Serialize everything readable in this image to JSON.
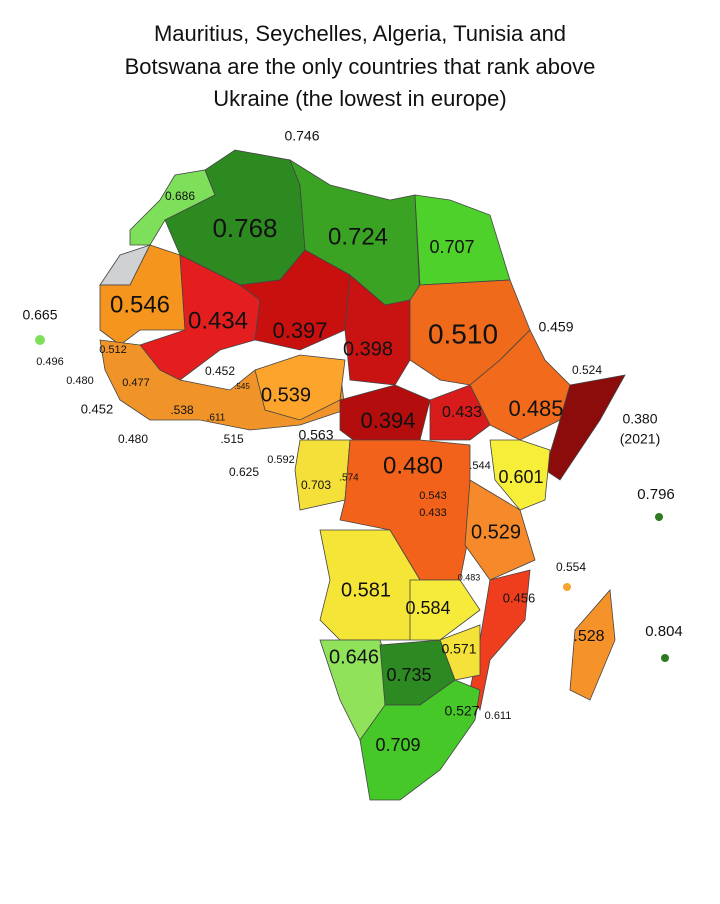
{
  "title": [
    "Mauritius, Seychelles, Algeria, Tunisia and",
    "Botswana are the only countries that rank above",
    "Ukraine (the lowest in europe)"
  ],
  "labels": [
    "0.746",
    "0.686",
    "0.768",
    "0.724",
    "0.707",
    "0.546",
    "0.434",
    "0.397",
    "0.398",
    "0.510",
    "0.459",
    "0.665",
    "0.512",
    "0.496",
    "0.480",
    "0.477",
    "0.452",
    ".545",
    "0.539",
    "0.524",
    "0.485",
    "0.380",
    "(2021)",
    "0.452",
    ".538",
    ".611",
    "0.394",
    "0.433",
    "0.480",
    ".515",
    "0.563",
    "0.592",
    "0.625",
    "0.703",
    ".574",
    "0.480",
    ".544",
    "0.601",
    "0.796",
    "0.543",
    "0.433",
    "0.529",
    "0.554",
    "0.483",
    "0.581",
    "0.584",
    "0.456",
    "0.804",
    ".528",
    "0.646",
    "0.571",
    "0.735",
    "0.527",
    "0.611",
    "0.709"
  ]
}
